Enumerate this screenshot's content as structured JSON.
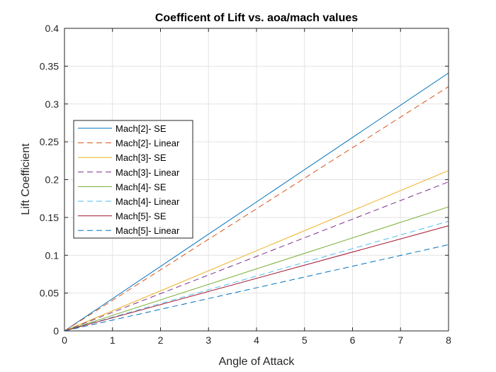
{
  "chart_data": {
    "type": "line",
    "title": "Coefficent of Lift vs. aoa/mach values",
    "xlabel": "Angle of Attack",
    "ylabel": "Lift Coefficient",
    "xlim": [
      0,
      8
    ],
    "ylim": [
      0,
      0.4
    ],
    "xticks": [
      "0",
      "1",
      "2",
      "3",
      "4",
      "5",
      "6",
      "7",
      "8"
    ],
    "yticks": [
      "0",
      "0.05",
      "0.1",
      "0.15",
      "0.2",
      "0.25",
      "0.3",
      "0.35",
      "0.4"
    ],
    "grid": true,
    "legend_position": "left",
    "x": [
      0,
      8
    ],
    "series": [
      {
        "name": "Mach[2]- SE",
        "values": [
          0,
          0.341
        ],
        "color": "#0072BD",
        "dash": "solid"
      },
      {
        "name": "Mach[2]- Linear",
        "values": [
          0,
          0.323
        ],
        "color": "#D95319",
        "dash": "dashed"
      },
      {
        "name": "Mach[3]- SE",
        "values": [
          0,
          0.212
        ],
        "color": "#EDB120",
        "dash": "solid"
      },
      {
        "name": "Mach[3]- Linear",
        "values": [
          0,
          0.197
        ],
        "color": "#7E2F8E",
        "dash": "dashed"
      },
      {
        "name": "Mach[4]- SE",
        "values": [
          0,
          0.164
        ],
        "color": "#77AC30",
        "dash": "solid"
      },
      {
        "name": "Mach[4]- Linear",
        "values": [
          0,
          0.145
        ],
        "color": "#4DBEEE",
        "dash": "dashed"
      },
      {
        "name": "Mach[5]- SE",
        "values": [
          0,
          0.139
        ],
        "color": "#A2142F",
        "dash": "solid"
      },
      {
        "name": "Mach[5]- Linear",
        "values": [
          0,
          0.114
        ],
        "color": "#0072BD",
        "dash": "dashed"
      }
    ]
  }
}
